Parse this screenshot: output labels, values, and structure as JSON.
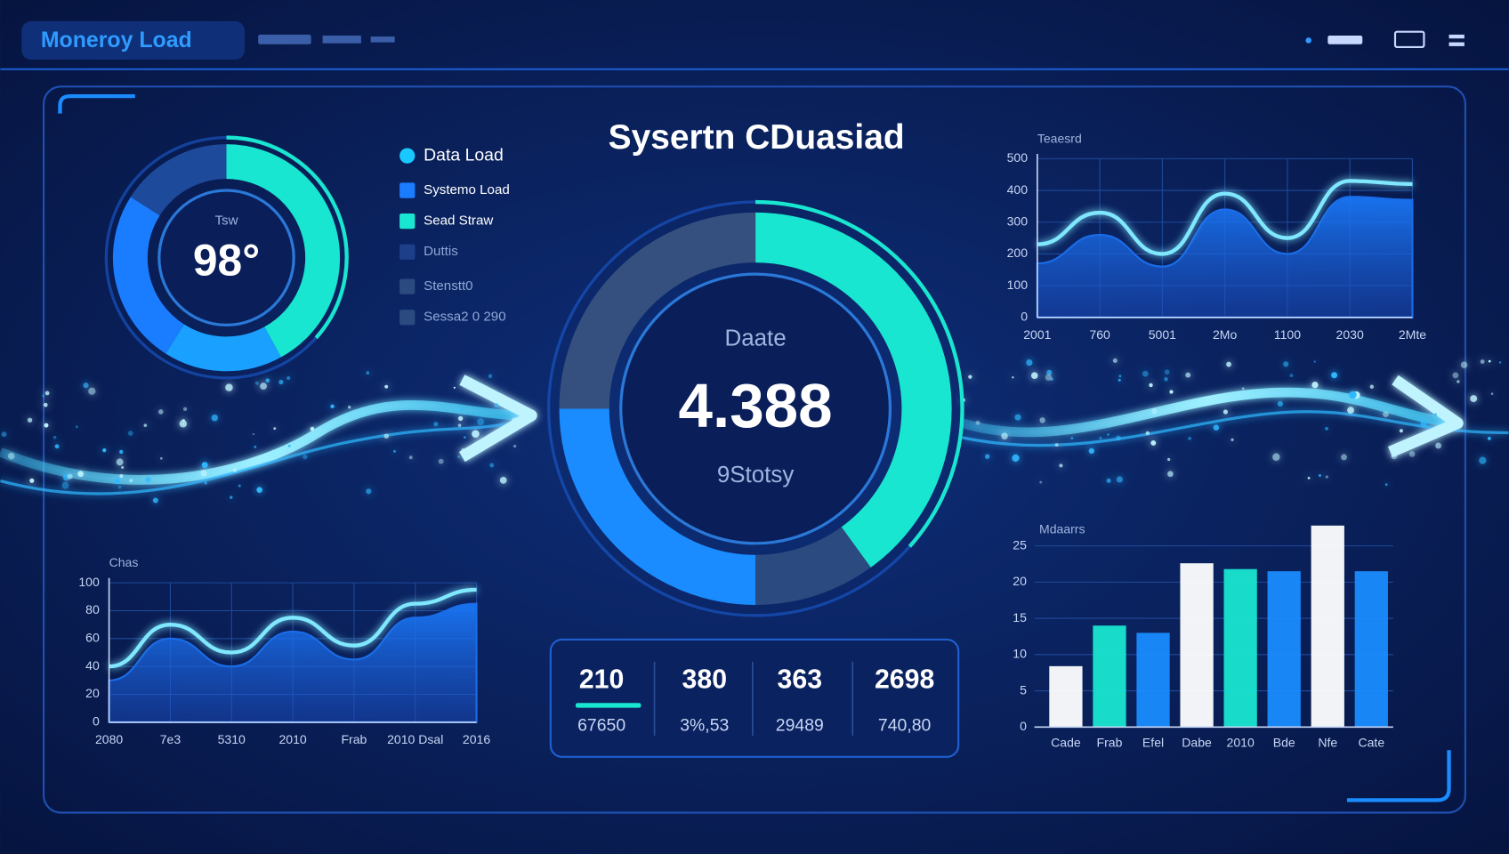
{
  "header": {
    "title": "Moneroy Load"
  },
  "title": "Sysertn CDuasiad",
  "legend": {
    "items": [
      {
        "label": "Data Load",
        "color": "#19c8ff"
      },
      {
        "label": "Systemo Load",
        "color": "#1a7cff"
      },
      {
        "label": "Sead Straw",
        "color": "#19e6d0"
      },
      {
        "label": "Duttis",
        "color": "#1d3f8a"
      },
      {
        "label": "Stenstt0",
        "color": "#2b4a80"
      },
      {
        "label": "Sessa2 0 290",
        "color": "#2b4a80"
      }
    ]
  },
  "chart_data": [
    {
      "type": "donut",
      "title": "Tsw",
      "center_label": "98°",
      "values": [
        42,
        17,
        25,
        16
      ],
      "colors": [
        "#19e6d0",
        "#1aa0ff",
        "#1a7cff",
        "#1d4a9a"
      ]
    },
    {
      "type": "donut",
      "title": "Daate",
      "center_label": "4.388",
      "subtitle": "9Stotsy",
      "values": [
        40,
        10,
        25,
        25
      ],
      "colors": [
        "#19e6d0",
        "#2b4a80",
        "#1a8cff",
        "#35507e"
      ]
    },
    {
      "type": "area",
      "title": "Teaesrd",
      "categories": [
        "2001",
        "760",
        "5001",
        "2Mo",
        "1100",
        "2030",
        "2Mte"
      ],
      "series": [
        {
          "color": "#7fe8ff",
          "values": [
            230,
            330,
            200,
            390,
            250,
            430,
            420
          ]
        },
        {
          "color": "#1a6ce8",
          "values": [
            170,
            260,
            160,
            340,
            200,
            380,
            370
          ]
        }
      ],
      "ylim": [
        0,
        500
      ],
      "yticks": [
        0,
        100,
        200,
        300,
        400,
        500
      ],
      "grid": true
    },
    {
      "type": "area",
      "title": "Chas",
      "categories": [
        "2080",
        "7e3",
        "5310",
        "2010",
        "Frab",
        "2010 Dsal",
        "2016"
      ],
      "series": [
        {
          "color": "#7fe8ff",
          "values": [
            40,
            70,
            50,
            75,
            55,
            85,
            95
          ]
        },
        {
          "color": "#1a6ce8",
          "values": [
            30,
            60,
            40,
            65,
            45,
            75,
            85
          ]
        }
      ],
      "ylim": [
        0,
        100
      ],
      "yticks": [
        0,
        20,
        40,
        60,
        80,
        100
      ],
      "grid": true
    },
    {
      "type": "bar",
      "title": "Mdaarrs",
      "categories": [
        "Cade",
        "Frab",
        "Efel",
        "Dabe",
        "2010",
        "Bde",
        "Nfe",
        "Cate"
      ],
      "values": [
        8.4,
        14,
        13,
        22.6,
        21.8,
        21.5,
        27.8,
        21.5
      ],
      "colors": [
        "#ffffff",
        "#19e6d0",
        "#1a8cff",
        "#ffffff",
        "#19e6d0",
        "#1a8cff",
        "#ffffff",
        "#1a8cff"
      ],
      "ylim": [
        0,
        28
      ],
      "yticks": [
        0,
        5,
        10,
        15,
        20,
        25
      ],
      "grid": true
    }
  ],
  "stats": [
    {
      "value": "210",
      "label": "67650"
    },
    {
      "value": "380",
      "label": "3%,53"
    },
    {
      "value": "363",
      "label": "29489"
    },
    {
      "value": "2698",
      "label": "740,80"
    }
  ]
}
